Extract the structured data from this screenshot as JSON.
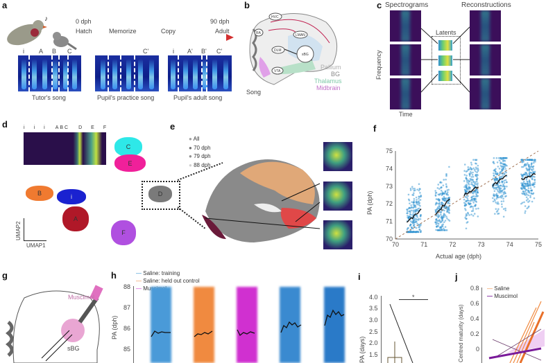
{
  "panels": {
    "a": "a",
    "b": "b",
    "c": "c",
    "d": "d",
    "e": "e",
    "f": "f",
    "g": "g",
    "h": "h",
    "i": "i",
    "j": "j"
  },
  "a": {
    "start_age": "0 dph",
    "start_label": "Hatch",
    "memorize": "Memorize",
    "copy": "Copy",
    "end_age": "90 dph",
    "end_label": "Adult",
    "tutor": {
      "caption": "Tutor's song",
      "segments": [
        "i",
        "A",
        "B",
        "C"
      ]
    },
    "practice": {
      "caption": "Pupil's practice song",
      "segments": [
        "C'"
      ]
    },
    "adult": {
      "caption": "Pupil's adult song",
      "segments": [
        "i",
        "A'",
        "B'",
        "C'"
      ]
    },
    "arrow_color": "#d32f2f"
  },
  "b": {
    "nuclei": [
      "HVC",
      "RA",
      "LMAN",
      "DLM",
      "sBG",
      "VTA"
    ],
    "song": "Song",
    "legend": [
      {
        "label": "Pallium",
        "color": "#b0b0b0"
      },
      {
        "label": "BG",
        "color": "#8a8a8a"
      },
      {
        "label": "Thalamus",
        "color": "#7fc9a8"
      },
      {
        "label": "Midbrain",
        "color": "#c070c8"
      }
    ]
  },
  "c": {
    "spectrograms": "Spectrograms",
    "reconstructions": "Reconstructions",
    "latents": "Latents",
    "ylabel": "Frequency",
    "xlabel": "Time"
  },
  "d": {
    "segments": [
      "i",
      "i",
      "i",
      "A",
      "B",
      "C",
      "D",
      "E",
      "F"
    ],
    "clusters": [
      {
        "label": "C",
        "color": "#2ee8e8"
      },
      {
        "label": "E",
        "color": "#f0209a"
      },
      {
        "label": "B",
        "color": "#f07a30"
      },
      {
        "label": "i",
        "color": "#1a22d0"
      },
      {
        "label": "A",
        "color": "#b01828"
      },
      {
        "label": "F",
        "color": "#b050e0"
      }
    ],
    "axis_y": "UMAP2",
    "axis_x": "UMAP1"
  },
  "e": {
    "inset_label": "D",
    "legend": [
      {
        "label": "All",
        "color": "#a0a0a0"
      },
      {
        "label": "70 dph",
        "color": "#707070"
      },
      {
        "label": "79 dph",
        "color": "#909090"
      },
      {
        "label": "88 dph",
        "color": "#d0d0d0"
      }
    ]
  },
  "chart_data": [
    {
      "type": "scatter",
      "xlabel": "Actual age (dph)",
      "ylabel": "PA (dph)",
      "xlim": [
        70,
        75
      ],
      "ylim": [
        70,
        75
      ],
      "xticks": [
        "70",
        "71",
        "72",
        "73",
        "74",
        "75"
      ],
      "yticks": [
        "70",
        "71",
        "72",
        "73",
        "74",
        "75"
      ],
      "point_color": "#2a8fd0",
      "identity_line": true,
      "clusters": [
        {
          "x_range": [
            70.4,
            70.9
          ],
          "y_range": [
            70.4,
            74.2
          ],
          "median_start": 70.9,
          "median_end": 71.7
        },
        {
          "x_range": [
            71.4,
            71.9
          ],
          "y_range": [
            70.5,
            74.1
          ],
          "median_start": 71.4,
          "median_end": 72.3
        },
        {
          "x_range": [
            72.4,
            72.9
          ],
          "y_range": [
            70.6,
            74.5
          ],
          "median_start": 72.5,
          "median_end": 73.0
        },
        {
          "x_range": [
            73.4,
            73.9
          ],
          "y_range": [
            70.7,
            74.6
          ],
          "median_start": 73.0,
          "median_end": 73.7
        },
        {
          "x_range": [
            74.4,
            74.9
          ],
          "y_range": [
            70.7,
            74.5
          ],
          "median_start": 73.4,
          "median_end": 73.7
        }
      ]
    },
    {
      "type": "scatter",
      "ylabel": "PA (dph)",
      "yticks": [
        "85",
        "86",
        "87",
        "88"
      ],
      "legend": [
        {
          "name": "Saline: training",
          "color": "#2a8fd0"
        },
        {
          "name": "Saline: held out control",
          "color": "#f08a40"
        },
        {
          "name": "Muscimol",
          "color": "#d030d0"
        }
      ]
    },
    {
      "type": "bar",
      "ylabel": "PA (days)",
      "yticks": [
        "1.5",
        "2.0",
        "2.5",
        "3.0",
        "3.5",
        "4.0"
      ],
      "significance": "*",
      "bar_value": 1.35
    },
    {
      "type": "line",
      "ylabel": "Centred maturity (days)",
      "yticks": [
        "0",
        "0.2",
        "0.4",
        "0.6",
        "0.8"
      ],
      "legend": [
        {
          "name": "Saline",
          "color": "#f08a40"
        },
        {
          "name": "Muscimol",
          "color": "#7a1a9a"
        }
      ]
    }
  ],
  "g": {
    "drug": "Muscimol",
    "target": "sBG"
  }
}
